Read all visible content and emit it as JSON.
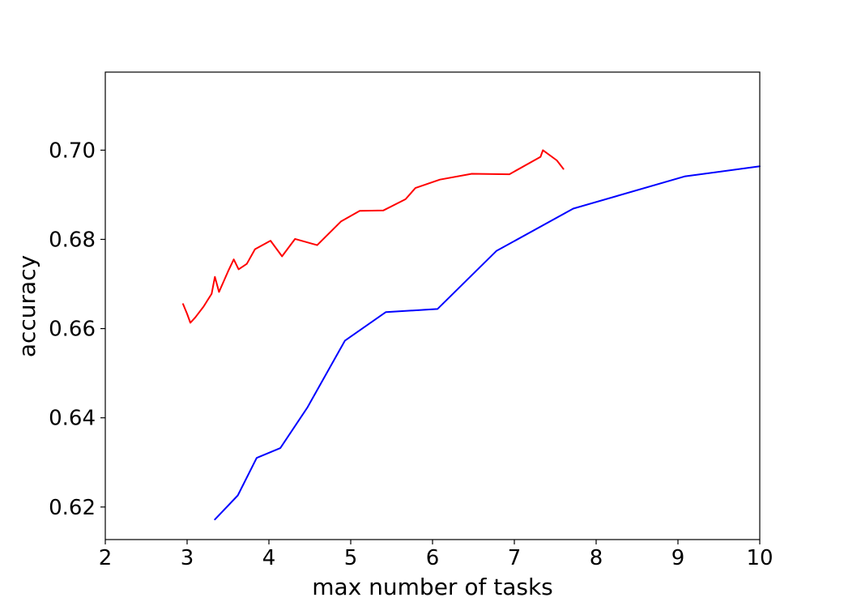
{
  "chart_data": {
    "type": "line",
    "title": "",
    "xlabel": "max number of tasks",
    "ylabel": "accuracy",
    "xlim": [
      2,
      10
    ],
    "ylim": [
      0.6127,
      0.7175
    ],
    "xticks": [
      2,
      3,
      4,
      5,
      6,
      7,
      8,
      9,
      10
    ],
    "xtick_labels": [
      "2",
      "3",
      "4",
      "5",
      "6",
      "7",
      "8",
      "9",
      "10"
    ],
    "yticks": [
      0.62,
      0.64,
      0.66,
      0.68,
      0.7
    ],
    "ytick_labels": [
      "0.62",
      "0.64",
      "0.66",
      "0.68",
      "0.70"
    ],
    "grid": false,
    "legend": "none",
    "series": [
      {
        "color": "#ff0000",
        "points": [
          [
            2.95,
            0.6655
          ],
          [
            3.0,
            0.6633
          ],
          [
            3.04,
            0.6613
          ],
          [
            3.1,
            0.6625
          ],
          [
            3.2,
            0.6649
          ],
          [
            3.3,
            0.6678
          ],
          [
            3.34,
            0.6716
          ],
          [
            3.39,
            0.6682
          ],
          [
            3.5,
            0.6728
          ],
          [
            3.57,
            0.6755
          ],
          [
            3.63,
            0.6733
          ],
          [
            3.73,
            0.6745
          ],
          [
            3.83,
            0.6778
          ],
          [
            4.02,
            0.6797
          ],
          [
            4.16,
            0.6762
          ],
          [
            4.32,
            0.6801
          ],
          [
            4.59,
            0.6787
          ],
          [
            4.88,
            0.684
          ],
          [
            5.11,
            0.6864
          ],
          [
            5.4,
            0.6865
          ],
          [
            5.67,
            0.689
          ],
          [
            5.79,
            0.6915
          ],
          [
            6.09,
            0.6934
          ],
          [
            6.48,
            0.6947
          ],
          [
            6.94,
            0.6946
          ],
          [
            7.32,
            0.6985
          ],
          [
            7.35,
            0.7
          ],
          [
            7.52,
            0.6977
          ],
          [
            7.6,
            0.6958
          ]
        ]
      },
      {
        "color": "#0000ff",
        "points": [
          [
            3.34,
            0.6172
          ],
          [
            3.62,
            0.6226
          ],
          [
            3.85,
            0.631
          ],
          [
            4.14,
            0.6332
          ],
          [
            4.47,
            0.6423
          ],
          [
            4.93,
            0.6573
          ],
          [
            5.43,
            0.6637
          ],
          [
            6.06,
            0.6644
          ],
          [
            6.78,
            0.6774
          ],
          [
            7.72,
            0.6869
          ],
          [
            9.08,
            0.6941
          ],
          [
            10.0,
            0.6964
          ]
        ]
      }
    ]
  }
}
